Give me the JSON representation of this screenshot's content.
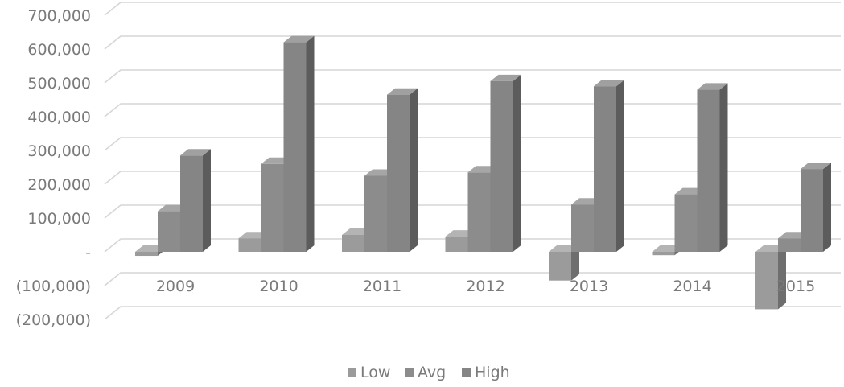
{
  "chart_data": {
    "type": "bar",
    "style": "3d-clustered-column",
    "categories": [
      "2009",
      "2010",
      "2011",
      "2012",
      "2013",
      "2014",
      "2015"
    ],
    "series": [
      {
        "name": "Low",
        "values": [
          -12000,
          40000,
          50000,
          45000,
          -85000,
          -10000,
          -170000
        ]
      },
      {
        "name": "Avg",
        "values": [
          120000,
          260000,
          225000,
          235000,
          140000,
          170000,
          40000
        ]
      },
      {
        "name": "High",
        "values": [
          285000,
          620000,
          465000,
          505000,
          490000,
          480000,
          245000
        ]
      }
    ],
    "y_tick_values": [
      -200000,
      -100000,
      0,
      100000,
      200000,
      300000,
      400000,
      500000,
      600000,
      700000
    ],
    "y_tick_labels": [
      "(200,000)",
      "(100,000)",
      "-",
      "100,000",
      "200,000",
      "300,000",
      "400,000",
      "500,000",
      "600,000",
      "700,000"
    ],
    "ylim": [
      -200000,
      700000
    ],
    "grid": true,
    "legend_position": "bottom",
    "title": "",
    "xlabel": "",
    "ylabel": "",
    "colors": {
      "Low": {
        "front": "#9b9b9b",
        "side": "#6e6e6e",
        "top": "#b4b4b4"
      },
      "Avg": {
        "front": "#8c8c8c",
        "side": "#636363",
        "top": "#a6a6a6"
      },
      "High": {
        "front": "#858585",
        "side": "#5c5c5c",
        "top": "#a0a0a0"
      },
      "grid": "#d6d6d6",
      "text": "#7a7a7a"
    }
  }
}
